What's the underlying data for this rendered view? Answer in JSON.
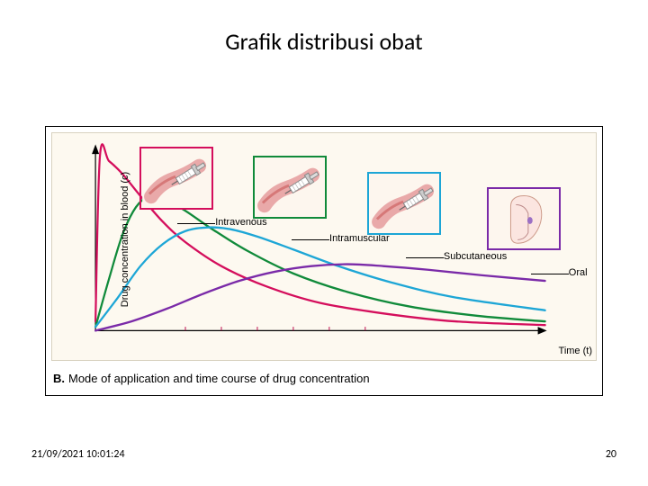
{
  "title": "Grafik distribusi obat",
  "timestamp": "21/09/2021 10:01:24",
  "page_number": "20",
  "caption_prefix": "B.",
  "caption_text": "Mode of application and time course of drug concentration",
  "axes": {
    "ylabel": "Drug concentration in blood (c)",
    "xlabel": "Time (t)",
    "xlim": [
      0,
      100
    ],
    "ylim": [
      0,
      100
    ],
    "axis_color": "#000000",
    "axis_width": 1.2,
    "arrowheads": true,
    "background_color": "#fdf9f0"
  },
  "tick_marks": {
    "color": "#c01050",
    "positions_x": [
      20,
      28,
      36,
      44,
      52,
      60
    ],
    "length": 4
  },
  "series": [
    {
      "name": "intravenous",
      "label": "Intravenous",
      "color": "#d40e5c",
      "line_width": 2.2,
      "points": [
        [
          0,
          5
        ],
        [
          1,
          95
        ],
        [
          3,
          92
        ],
        [
          6,
          85
        ],
        [
          10,
          73
        ],
        [
          15,
          59
        ],
        [
          20,
          48
        ],
        [
          28,
          35
        ],
        [
          38,
          24
        ],
        [
          50,
          15
        ],
        [
          65,
          9
        ],
        [
          80,
          5
        ],
        [
          100,
          3
        ]
      ],
      "inset": {
        "border_color": "#d40e5c",
        "left_pct": 16,
        "top_pct": 6,
        "label_left_pct": 30,
        "label_top_pct": 37,
        "leader_from_pct": 23,
        "leader_to_pct": 30
      }
    },
    {
      "name": "intramuscular",
      "label": "Intramuscular",
      "color": "#108a3a",
      "line_width": 2.2,
      "points": [
        [
          0,
          2
        ],
        [
          3,
          28
        ],
        [
          6,
          52
        ],
        [
          9,
          67
        ],
        [
          12,
          73
        ],
        [
          15,
          72
        ],
        [
          20,
          65
        ],
        [
          26,
          55
        ],
        [
          34,
          43
        ],
        [
          44,
          31
        ],
        [
          56,
          21
        ],
        [
          70,
          13
        ],
        [
          85,
          8
        ],
        [
          100,
          5
        ]
      ],
      "inset": {
        "border_color": "#108a3a",
        "left_pct": 37,
        "top_pct": 10,
        "label_left_pct": 51,
        "label_top_pct": 44,
        "leader_from_pct": 44,
        "leader_to_pct": 51
      }
    },
    {
      "name": "subcutaneous",
      "label": "Subcutaneous",
      "color": "#1da6d6",
      "line_width": 2.2,
      "points": [
        [
          0,
          2
        ],
        [
          5,
          18
        ],
        [
          10,
          35
        ],
        [
          15,
          47
        ],
        [
          20,
          54
        ],
        [
          25,
          56
        ],
        [
          30,
          55
        ],
        [
          36,
          51
        ],
        [
          44,
          44
        ],
        [
          54,
          35
        ],
        [
          66,
          26
        ],
        [
          80,
          18
        ],
        [
          100,
          11
        ]
      ],
      "inset": {
        "border_color": "#1da6d6",
        "left_pct": 58,
        "top_pct": 17,
        "label_left_pct": 72,
        "label_top_pct": 52,
        "leader_from_pct": 65,
        "leader_to_pct": 72
      }
    },
    {
      "name": "oral",
      "label": "Oral",
      "color": "#7a2aa8",
      "line_width": 2.2,
      "points": [
        [
          0,
          0
        ],
        [
          8,
          5
        ],
        [
          16,
          12
        ],
        [
          24,
          20
        ],
        [
          32,
          27
        ],
        [
          40,
          32
        ],
        [
          48,
          35
        ],
        [
          56,
          36
        ],
        [
          64,
          35
        ],
        [
          74,
          33
        ],
        [
          86,
          30
        ],
        [
          100,
          27
        ]
      ],
      "inset": {
        "border_color": "#7a2aa8",
        "left_pct": 80,
        "top_pct": 24,
        "label_left_pct": 95,
        "label_top_pct": 59,
        "leader_from_pct": 88,
        "leader_to_pct": 95
      }
    }
  ]
}
